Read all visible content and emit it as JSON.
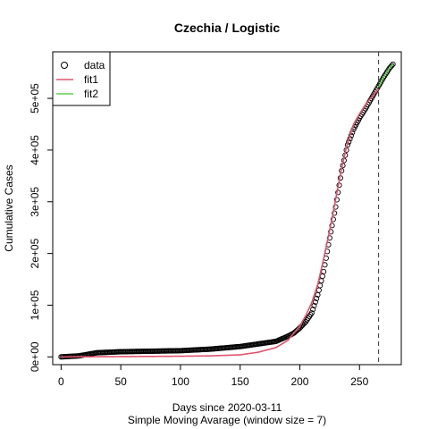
{
  "chart_data": {
    "type": "scatter",
    "title": "Czechia / Logistic",
    "xlabel": "Days since 2020-03-11",
    "xlabel_sub": "Simple Moving Avarage (window size = 7)",
    "ylabel": "Cumulative Cases",
    "xlim": [
      -7,
      285
    ],
    "ylim": [
      -15000,
      590000
    ],
    "x_ticks": [
      0,
      50,
      100,
      150,
      200,
      250
    ],
    "y_ticks": [
      0,
      100000,
      200000,
      300000,
      400000,
      500000
    ],
    "y_tick_labels": [
      "0e+00",
      "1e+05",
      "2e+05",
      "3e+05",
      "4e+05",
      "5e+05"
    ],
    "vline_x": 266,
    "legend": {
      "position": "top-left",
      "items": [
        {
          "label": "data",
          "kind": "point",
          "color": "#000000"
        },
        {
          "label": "fit1",
          "kind": "line",
          "color": "#DF536B"
        },
        {
          "label": "fit2",
          "kind": "line",
          "color": "#61D04F"
        }
      ]
    },
    "data_series": {
      "name": "data",
      "color": "#000000",
      "x": [
        0,
        15,
        30,
        50,
        75,
        100,
        125,
        150,
        165,
        180,
        190,
        195,
        200,
        205,
        210,
        215,
        220,
        225,
        230,
        235,
        240,
        245,
        250,
        255,
        260,
        265,
        270,
        275,
        278
      ],
      "y": [
        0,
        2000,
        8000,
        10000,
        11000,
        12000,
        15000,
        20000,
        25000,
        30000,
        40000,
        46000,
        56000,
        68000,
        85000,
        120000,
        165000,
        230000,
        290000,
        360000,
        410000,
        440000,
        462000,
        480000,
        500000,
        520000,
        540000,
        558000,
        566000
      ]
    },
    "fit1": {
      "name": "fit1",
      "color": "#DF536B",
      "x": [
        0,
        25,
        50,
        75,
        100,
        125,
        150,
        165,
        180,
        190,
        200,
        205,
        210,
        215,
        220,
        225,
        230,
        235,
        240,
        245,
        250,
        255,
        260,
        266
      ],
      "y": [
        0,
        300,
        600,
        900,
        1300,
        2000,
        4000,
        9000,
        18000,
        32000,
        60000,
        80000,
        105000,
        140000,
        190000,
        245000,
        305000,
        365000,
        415000,
        450000,
        470000,
        488000,
        502000,
        518000
      ]
    },
    "fit2": {
      "name": "fit2",
      "color": "#61D04F",
      "x": [
        266,
        270,
        275,
        278
      ],
      "y": [
        522000,
        540000,
        558000,
        566000
      ]
    }
  }
}
